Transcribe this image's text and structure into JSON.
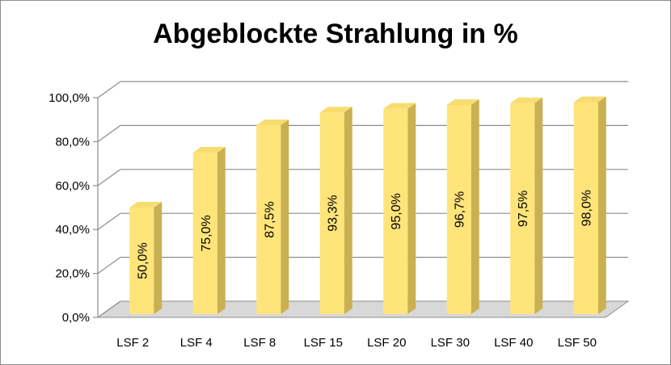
{
  "chart_data": {
    "type": "bar",
    "title": "Abgeblockte Strahlung in %",
    "categories": [
      "LSF 2",
      "LSF 4",
      "LSF 8",
      "LSF 15",
      "LSF 20",
      "LSF 30",
      "LSF 40",
      "LSF 50"
    ],
    "values": [
      50.0,
      75.0,
      87.5,
      93.3,
      95.0,
      96.7,
      97.5,
      98.0
    ],
    "data_labels": [
      "50,0%",
      "75,0%",
      "87,5%",
      "93,3%",
      "95,0%",
      "96,7%",
      "97,5%",
      "98,0%"
    ],
    "y_ticks": [
      0,
      20,
      40,
      60,
      80,
      100
    ],
    "y_tick_labels": [
      "0,0%",
      "20,0%",
      "40,0%",
      "60,0%",
      "80,0%",
      "100,0%"
    ],
    "ylim": [
      0,
      100
    ],
    "xlabel": "",
    "ylabel": "",
    "grid": true,
    "legend": "none",
    "style": "3d-column",
    "colors": {
      "bar_front": "#ffe47a",
      "bar_top": "#f7dc72",
      "bar_side": "#c9b050",
      "wall": "#ffffff",
      "floor": "#d8d8d8",
      "grid": "#8c8c8c",
      "frame": "#8c8c8c"
    }
  }
}
